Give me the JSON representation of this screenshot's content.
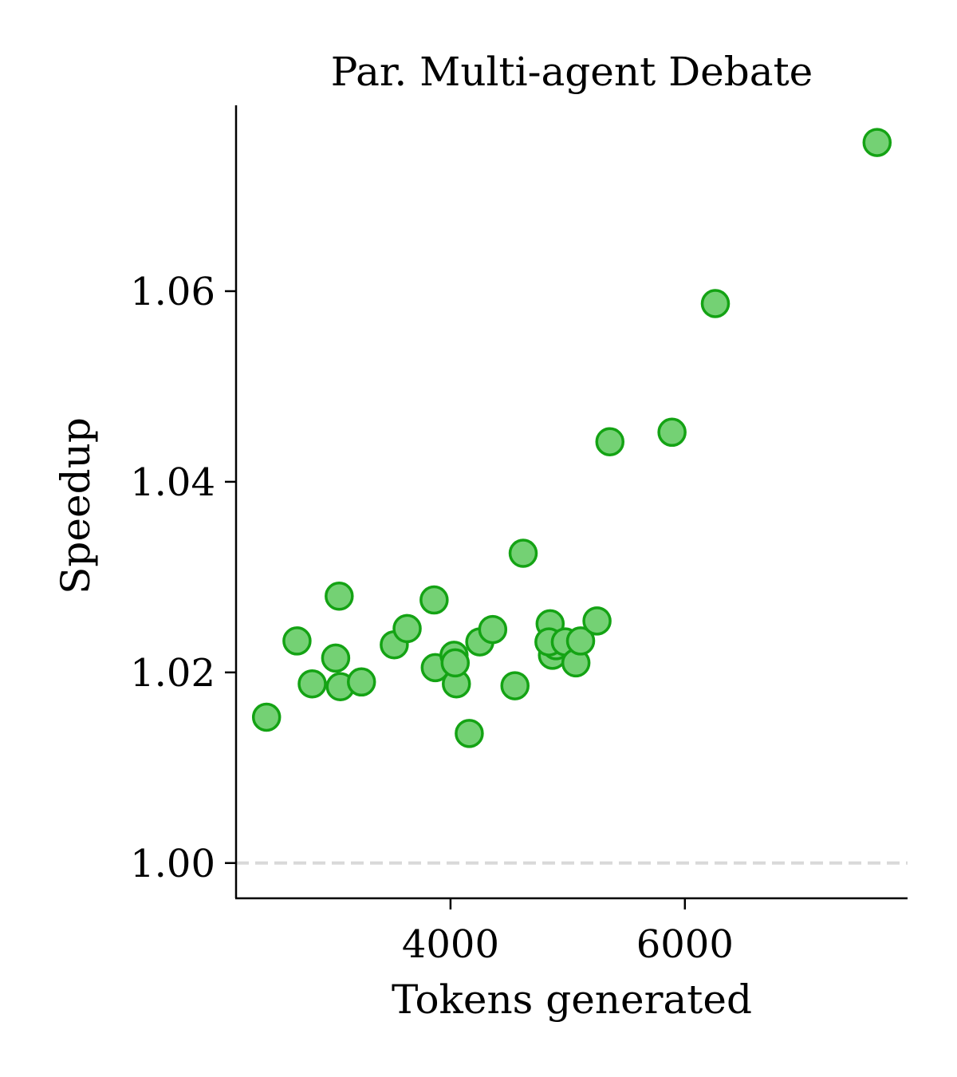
{
  "chart_data": {
    "type": "scatter",
    "title": "Par. Multi-agent Debate",
    "xlabel": "Tokens generated",
    "ylabel": "Speedup",
    "xlim": [
      2170,
      7900
    ],
    "ylim": [
      0.9963,
      1.0795
    ],
    "x_ticks": [
      {
        "value": 4000,
        "label": "4000"
      },
      {
        "value": 6000,
        "label": "6000"
      }
    ],
    "y_ticks": [
      {
        "value": 1.0,
        "label": "1.00"
      },
      {
        "value": 1.02,
        "label": "1.02"
      },
      {
        "value": 1.04,
        "label": "1.04"
      },
      {
        "value": 1.06,
        "label": "1.06"
      }
    ],
    "reference_line": {
      "y": 1.0,
      "style": "dashed",
      "color": "#d9d9d9"
    },
    "grid": false,
    "marker_fill": "#74d174",
    "marker_edge": "#14a314",
    "points": [
      {
        "x": 2430,
        "y": 1.0153
      },
      {
        "x": 2690,
        "y": 1.0233
      },
      {
        "x": 2820,
        "y": 1.0188
      },
      {
        "x": 3020,
        "y": 1.0215
      },
      {
        "x": 3050,
        "y": 1.028
      },
      {
        "x": 3060,
        "y": 1.0185
      },
      {
        "x": 3240,
        "y": 1.019
      },
      {
        "x": 3520,
        "y": 1.0229
      },
      {
        "x": 3630,
        "y": 1.0246
      },
      {
        "x": 3860,
        "y": 1.0276
      },
      {
        "x": 3870,
        "y": 1.0205
      },
      {
        "x": 4030,
        "y": 1.0218
      },
      {
        "x": 4050,
        "y": 1.0188
      },
      {
        "x": 4040,
        "y": 1.021
      },
      {
        "x": 4160,
        "y": 1.0136
      },
      {
        "x": 4250,
        "y": 1.0232
      },
      {
        "x": 4360,
        "y": 1.0245
      },
      {
        "x": 4550,
        "y": 1.0186
      },
      {
        "x": 4620,
        "y": 1.0325
      },
      {
        "x": 4850,
        "y": 1.0251
      },
      {
        "x": 4870,
        "y": 1.0218
      },
      {
        "x": 4900,
        "y": 1.0228
      },
      {
        "x": 4840,
        "y": 1.0232
      },
      {
        "x": 4980,
        "y": 1.0232
      },
      {
        "x": 5070,
        "y": 1.021
      },
      {
        "x": 5110,
        "y": 1.0233
      },
      {
        "x": 5250,
        "y": 1.0254
      },
      {
        "x": 5360,
        "y": 1.0442
      },
      {
        "x": 5890,
        "y": 1.0452
      },
      {
        "x": 6260,
        "y": 1.0587
      },
      {
        "x": 7640,
        "y": 1.0756
      }
    ]
  }
}
